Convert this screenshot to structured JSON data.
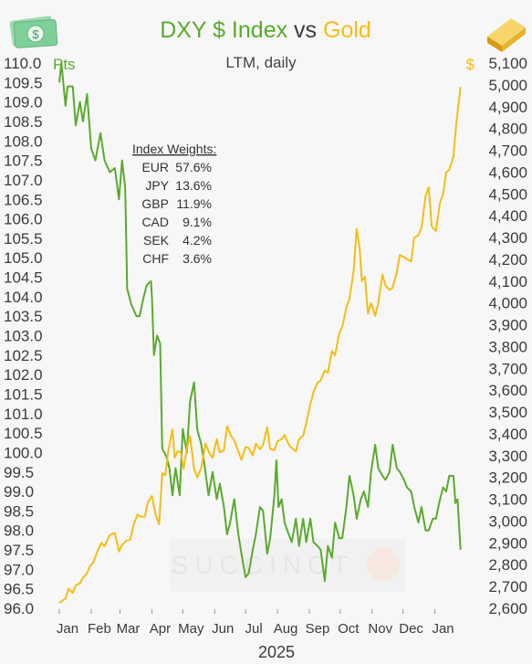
{
  "chart_data": {
    "type": "line",
    "title": {
      "part1": "DXY $ Index",
      "part2": " vs ",
      "part3": "Gold"
    },
    "subtitle": "LTM, daily",
    "watermark": "SUCCINCT",
    "left_axis": {
      "unit": "Pts",
      "min": 96.0,
      "max": 110.0,
      "step": 0.5
    },
    "right_axis": {
      "unit": "$",
      "min": 2600,
      "max": 5100,
      "step": 100
    },
    "x_axis": {
      "months": [
        "Jan",
        "Feb",
        "Mar",
        "Apr",
        "May",
        "Jun",
        "Jul",
        "Aug",
        "Sep",
        "Oct",
        "Nov",
        "Dec",
        "Jan"
      ],
      "year": "2025"
    },
    "weights": {
      "heading": "Index Weights:",
      "items": [
        {
          "currency": "EUR",
          "pct": "57.6%"
        },
        {
          "currency": "JPY",
          "pct": "13.6%"
        },
        {
          "currency": "GBP",
          "pct": "11.9%"
        },
        {
          "currency": "CAD",
          "pct": "9.1%"
        },
        {
          "currency": "SEK",
          "pct": "4.2%"
        },
        {
          "currency": "CHF",
          "pct": "3.6%"
        }
      ]
    },
    "colors": {
      "dxy": "#5aaa2e",
      "gold": "#f5bd14",
      "text": "#3b3b3b"
    },
    "series": [
      {
        "id": "dxy",
        "axis": "left",
        "points": [
          [
            "2025-01-01",
            109.5
          ],
          [
            "2025-01-03",
            110.0
          ],
          [
            "2025-01-07",
            108.9
          ],
          [
            "2025-01-09",
            109.4
          ],
          [
            "2025-01-14",
            109.4
          ],
          [
            "2025-01-17",
            108.4
          ],
          [
            "2025-01-21",
            109.0
          ],
          [
            "2025-01-24",
            108.5
          ],
          [
            "2025-01-28",
            109.2
          ],
          [
            "2025-02-01",
            107.8
          ],
          [
            "2025-02-05",
            107.5
          ],
          [
            "2025-02-10",
            108.2
          ],
          [
            "2025-02-14",
            107.5
          ],
          [
            "2025-02-19",
            107.2
          ],
          [
            "2025-02-24",
            107.3
          ],
          [
            "2025-02-28",
            106.5
          ],
          [
            "2025-03-03",
            107.5
          ],
          [
            "2025-03-06",
            106.8
          ],
          [
            "2025-03-08",
            104.2
          ],
          [
            "2025-03-12",
            103.8
          ],
          [
            "2025-03-17",
            103.5
          ],
          [
            "2025-03-20",
            103.5
          ],
          [
            "2025-03-24",
            104.0
          ],
          [
            "2025-03-27",
            104.3
          ],
          [
            "2025-03-31",
            104.4
          ],
          [
            "2025-04-01",
            104.0
          ],
          [
            "2025-04-03",
            102.5
          ],
          [
            "2025-04-06",
            103.0
          ],
          [
            "2025-04-09",
            102.8
          ],
          [
            "2025-04-11",
            100.1
          ],
          [
            "2025-04-15",
            99.9
          ],
          [
            "2025-04-18",
            99.6
          ],
          [
            "2025-04-21",
            98.9
          ],
          [
            "2025-04-24",
            99.6
          ],
          [
            "2025-04-28",
            98.9
          ],
          [
            "2025-05-01",
            100.6
          ],
          [
            "2025-05-05",
            100.0
          ],
          [
            "2025-05-08",
            101.3
          ],
          [
            "2025-05-12",
            101.8
          ],
          [
            "2025-05-15",
            100.6
          ],
          [
            "2025-05-19",
            100.2
          ],
          [
            "2025-05-22",
            99.7
          ],
          [
            "2025-05-26",
            98.9
          ],
          [
            "2025-05-30",
            99.5
          ],
          [
            "2025-06-03",
            98.8
          ],
          [
            "2025-06-06",
            99.2
          ],
          [
            "2025-06-10",
            98.6
          ],
          [
            "2025-06-13",
            97.9
          ],
          [
            "2025-06-16",
            98.2
          ],
          [
            "2025-06-20",
            98.8
          ],
          [
            "2025-06-24",
            97.9
          ],
          [
            "2025-06-27",
            97.4
          ],
          [
            "2025-07-01",
            96.8
          ],
          [
            "2025-07-04",
            96.9
          ],
          [
            "2025-07-08",
            97.5
          ],
          [
            "2025-07-11",
            97.9
          ],
          [
            "2025-07-15",
            98.6
          ],
          [
            "2025-07-18",
            98.5
          ],
          [
            "2025-07-22",
            97.4
          ],
          [
            "2025-07-25",
            97.8
          ],
          [
            "2025-07-29",
            98.9
          ],
          [
            "2025-07-31",
            99.8
          ],
          [
            "2025-08-02",
            98.6
          ],
          [
            "2025-08-05",
            98.8
          ],
          [
            "2025-08-08",
            98.2
          ],
          [
            "2025-08-12",
            97.9
          ],
          [
            "2025-08-15",
            97.7
          ],
          [
            "2025-08-19",
            98.3
          ],
          [
            "2025-08-22",
            97.6
          ],
          [
            "2025-08-26",
            98.3
          ],
          [
            "2025-08-29",
            97.7
          ],
          [
            "2025-09-02",
            98.3
          ],
          [
            "2025-09-05",
            97.7
          ],
          [
            "2025-09-09",
            97.6
          ],
          [
            "2025-09-12",
            97.5
          ],
          [
            "2025-09-16",
            96.7
          ],
          [
            "2025-09-19",
            97.6
          ],
          [
            "2025-09-23",
            97.3
          ],
          [
            "2025-09-26",
            98.2
          ],
          [
            "2025-09-30",
            97.8
          ],
          [
            "2025-10-03",
            97.8
          ],
          [
            "2025-10-07",
            98.6
          ],
          [
            "2025-10-10",
            99.4
          ],
          [
            "2025-10-14",
            98.9
          ],
          [
            "2025-10-17",
            98.3
          ],
          [
            "2025-10-21",
            98.8
          ],
          [
            "2025-10-24",
            99.0
          ],
          [
            "2025-10-28",
            98.6
          ],
          [
            "2025-10-31",
            99.5
          ],
          [
            "2025-11-04",
            100.2
          ],
          [
            "2025-11-07",
            99.6
          ],
          [
            "2025-11-11",
            99.4
          ],
          [
            "2025-11-14",
            99.3
          ],
          [
            "2025-11-18",
            99.5
          ],
          [
            "2025-11-21",
            100.2
          ],
          [
            "2025-11-25",
            99.6
          ],
          [
            "2025-11-28",
            99.5
          ],
          [
            "2025-12-02",
            99.3
          ],
          [
            "2025-12-05",
            99.1
          ],
          [
            "2025-12-09",
            99.0
          ],
          [
            "2025-12-12",
            98.6
          ],
          [
            "2025-12-16",
            98.2
          ],
          [
            "2025-12-19",
            98.6
          ],
          [
            "2025-12-23",
            98.0
          ],
          [
            "2025-12-26",
            98.0
          ],
          [
            "2025-12-30",
            98.3
          ],
          [
            "2026-01-02",
            98.3
          ],
          [
            "2026-01-06",
            98.8
          ],
          [
            "2026-01-09",
            99.1
          ],
          [
            "2026-01-12",
            99.0
          ],
          [
            "2026-01-15",
            99.4
          ],
          [
            "2026-01-19",
            99.4
          ],
          [
            "2026-01-21",
            98.7
          ],
          [
            "2026-01-23",
            98.8
          ],
          [
            "2026-01-26",
            97.5
          ]
        ]
      },
      {
        "id": "gold",
        "axis": "right",
        "points": [
          [
            "2025-01-01",
            2625
          ],
          [
            "2025-01-04",
            2635
          ],
          [
            "2025-01-07",
            2645
          ],
          [
            "2025-01-10",
            2690
          ],
          [
            "2025-01-14",
            2670
          ],
          [
            "2025-01-17",
            2705
          ],
          [
            "2025-01-21",
            2715
          ],
          [
            "2025-01-24",
            2740
          ],
          [
            "2025-01-28",
            2760
          ],
          [
            "2025-01-31",
            2795
          ],
          [
            "2025-02-03",
            2810
          ],
          [
            "2025-02-07",
            2860
          ],
          [
            "2025-02-11",
            2900
          ],
          [
            "2025-02-14",
            2885
          ],
          [
            "2025-02-19",
            2935
          ],
          [
            "2025-02-24",
            2945
          ],
          [
            "2025-02-28",
            2860
          ],
          [
            "2025-03-03",
            2890
          ],
          [
            "2025-03-07",
            2910
          ],
          [
            "2025-03-11",
            2915
          ],
          [
            "2025-03-14",
            2980
          ],
          [
            "2025-03-18",
            3030
          ],
          [
            "2025-03-21",
            3020
          ],
          [
            "2025-03-25",
            3020
          ],
          [
            "2025-03-28",
            3085
          ],
          [
            "2025-04-01",
            3115
          ],
          [
            "2025-04-04",
            3040
          ],
          [
            "2025-04-08",
            2985
          ],
          [
            "2025-04-11",
            3220
          ],
          [
            "2025-04-14",
            3210
          ],
          [
            "2025-04-17",
            3325
          ],
          [
            "2025-04-21",
            3420
          ],
          [
            "2025-04-23",
            3290
          ],
          [
            "2025-04-26",
            3320
          ],
          [
            "2025-04-29",
            3315
          ],
          [
            "2025-05-02",
            3240
          ],
          [
            "2025-05-05",
            3335
          ],
          [
            "2025-05-08",
            3390
          ],
          [
            "2025-05-12",
            3240
          ],
          [
            "2025-05-15",
            3200
          ],
          [
            "2025-05-19",
            3245
          ],
          [
            "2025-05-23",
            3355
          ],
          [
            "2025-05-27",
            3310
          ],
          [
            "2025-05-30",
            3290
          ],
          [
            "2025-06-03",
            3375
          ],
          [
            "2025-06-06",
            3315
          ],
          [
            "2025-06-10",
            3325
          ],
          [
            "2025-06-13",
            3435
          ],
          [
            "2025-06-17",
            3390
          ],
          [
            "2025-06-20",
            3370
          ],
          [
            "2025-06-24",
            3320
          ],
          [
            "2025-06-27",
            3280
          ],
          [
            "2025-07-01",
            3340
          ],
          [
            "2025-07-04",
            3335
          ],
          [
            "2025-07-08",
            3300
          ],
          [
            "2025-07-11",
            3355
          ],
          [
            "2025-07-15",
            3330
          ],
          [
            "2025-07-18",
            3350
          ],
          [
            "2025-07-22",
            3430
          ],
          [
            "2025-07-25",
            3330
          ],
          [
            "2025-07-29",
            3325
          ],
          [
            "2025-08-01",
            3365
          ],
          [
            "2025-08-05",
            3375
          ],
          [
            "2025-08-08",
            3395
          ],
          [
            "2025-08-12",
            3350
          ],
          [
            "2025-08-15",
            3335
          ],
          [
            "2025-08-19",
            3320
          ],
          [
            "2025-08-22",
            3375
          ],
          [
            "2025-08-26",
            3390
          ],
          [
            "2025-08-29",
            3450
          ],
          [
            "2025-09-02",
            3535
          ],
          [
            "2025-09-05",
            3590
          ],
          [
            "2025-09-09",
            3635
          ],
          [
            "2025-09-12",
            3645
          ],
          [
            "2025-09-16",
            3690
          ],
          [
            "2025-09-19",
            3680
          ],
          [
            "2025-09-23",
            3780
          ],
          [
            "2025-09-26",
            3760
          ],
          [
            "2025-09-30",
            3860
          ],
          [
            "2025-10-03",
            3890
          ],
          [
            "2025-10-07",
            3980
          ],
          [
            "2025-10-10",
            4020
          ],
          [
            "2025-10-14",
            4145
          ],
          [
            "2025-10-17",
            4340
          ],
          [
            "2025-10-20",
            4250
          ],
          [
            "2025-10-22",
            4100
          ],
          [
            "2025-10-25",
            4120
          ],
          [
            "2025-10-28",
            3950
          ],
          [
            "2025-10-31",
            4000
          ],
          [
            "2025-11-04",
            3940
          ],
          [
            "2025-11-07",
            4000
          ],
          [
            "2025-11-11",
            4130
          ],
          [
            "2025-11-14",
            4080
          ],
          [
            "2025-11-18",
            4060
          ],
          [
            "2025-11-21",
            4070
          ],
          [
            "2025-11-25",
            4140
          ],
          [
            "2025-11-28",
            4220
          ],
          [
            "2025-12-02",
            4210
          ],
          [
            "2025-12-05",
            4200
          ],
          [
            "2025-12-09",
            4190
          ],
          [
            "2025-12-12",
            4300
          ],
          [
            "2025-12-16",
            4310
          ],
          [
            "2025-12-19",
            4345
          ],
          [
            "2025-12-23",
            4490
          ],
          [
            "2025-12-26",
            4530
          ],
          [
            "2025-12-29",
            4350
          ],
          [
            "2026-01-02",
            4330
          ],
          [
            "2026-01-06",
            4460
          ],
          [
            "2026-01-09",
            4500
          ],
          [
            "2026-01-12",
            4600
          ],
          [
            "2026-01-15",
            4610
          ],
          [
            "2026-01-19",
            4670
          ],
          [
            "2026-01-22",
            4830
          ],
          [
            "2026-01-26",
            4990
          ]
        ]
      }
    ]
  }
}
